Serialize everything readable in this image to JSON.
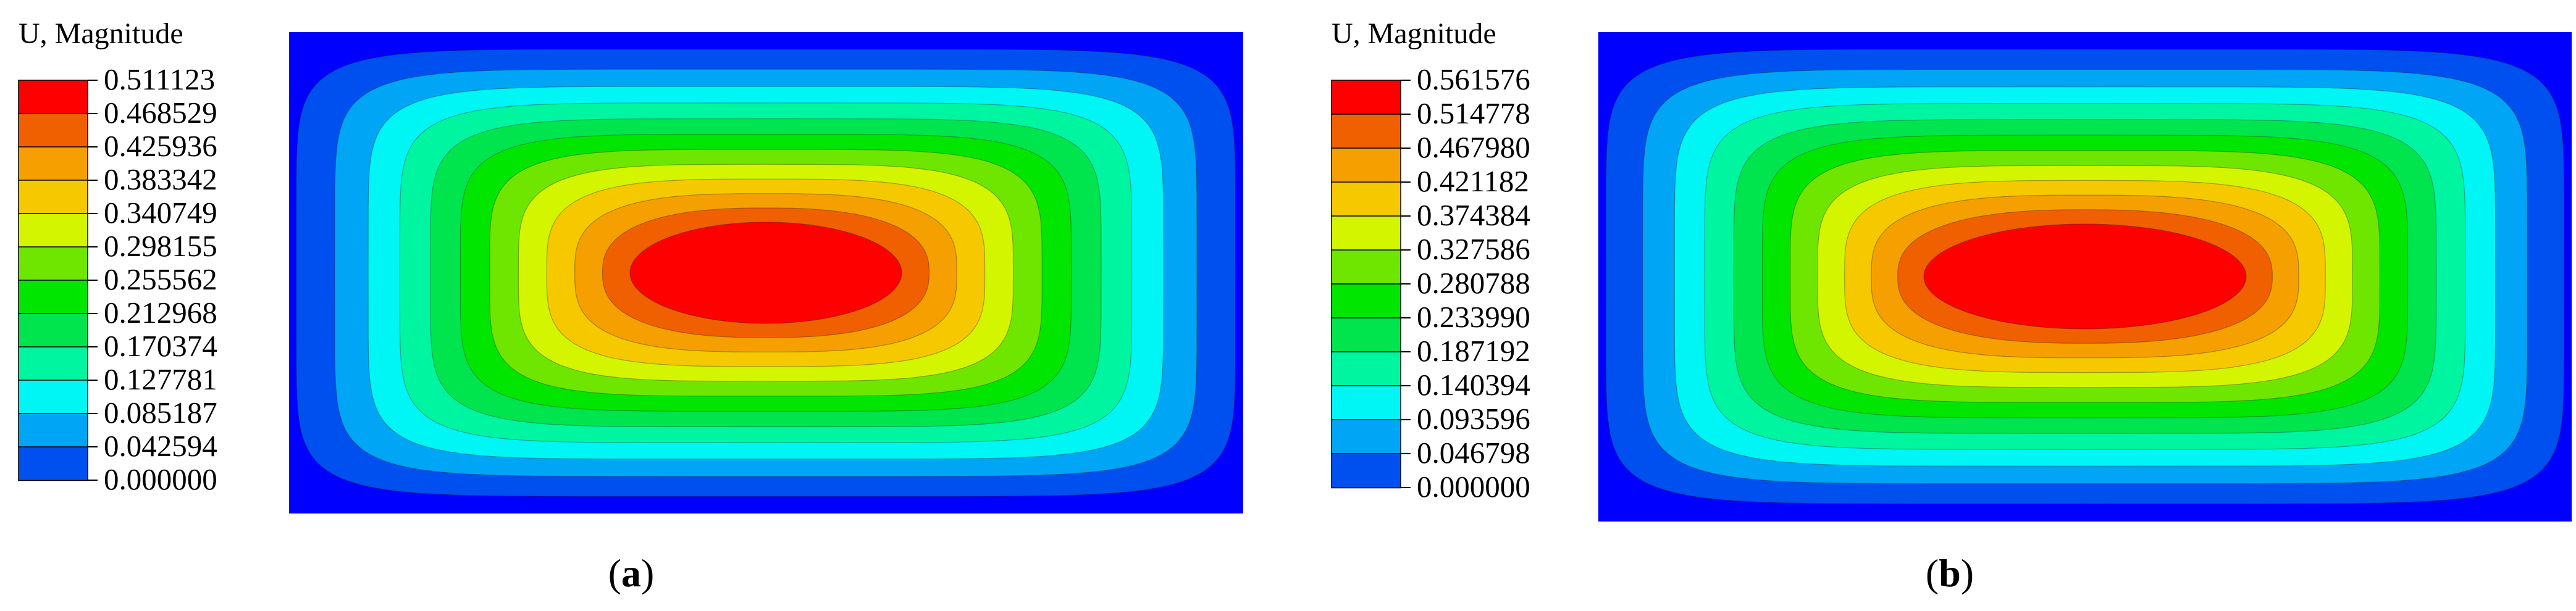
{
  "chart_data": [
    {
      "type": "heatmap",
      "legend_title": "U, Magnitude",
      "panel_label": "a",
      "colors": [
        "#0000ff",
        "#0050f0",
        "#00a6f5",
        "#00f5f5",
        "#00f5a0",
        "#00e44e",
        "#00e600",
        "#6ee600",
        "#d4f500",
        "#f5c800",
        "#f5a000",
        "#f06000",
        "#ff0000"
      ],
      "tick_labels": [
        "0.511123",
        "0.468529",
        "0.425936",
        "0.383342",
        "0.340749",
        "0.298155",
        "0.255562",
        "0.212968",
        "0.170374",
        "0.127781",
        "0.085187",
        "0.042594",
        "0.000000"
      ],
      "values": [
        0.511123,
        0.468529,
        0.425936,
        0.383342,
        0.340749,
        0.298155,
        0.255562,
        0.212968,
        0.170374,
        0.127781,
        0.085187,
        0.042594,
        0.0
      ]
    },
    {
      "type": "heatmap",
      "legend_title": "U, Magnitude",
      "panel_label": "b",
      "colors": [
        "#0000ff",
        "#0050f0",
        "#00a6f5",
        "#00f5f5",
        "#00f5a0",
        "#00e44e",
        "#00e600",
        "#6ee600",
        "#d4f500",
        "#f5c800",
        "#f5a000",
        "#f06000",
        "#ff0000"
      ],
      "tick_labels": [
        "0.561576",
        "0.514778",
        "0.467980",
        "0.421182",
        "0.374384",
        "0.327586",
        "0.280788",
        "0.233990",
        "0.187192",
        "0.140394",
        "0.093596",
        "0.046798",
        "0.000000"
      ],
      "values": [
        0.561576,
        0.514778,
        0.46798,
        0.421182,
        0.374384,
        0.327586,
        0.280788,
        0.23399,
        0.187192,
        0.140394,
        0.093596,
        0.046798,
        0.0
      ]
    }
  ]
}
